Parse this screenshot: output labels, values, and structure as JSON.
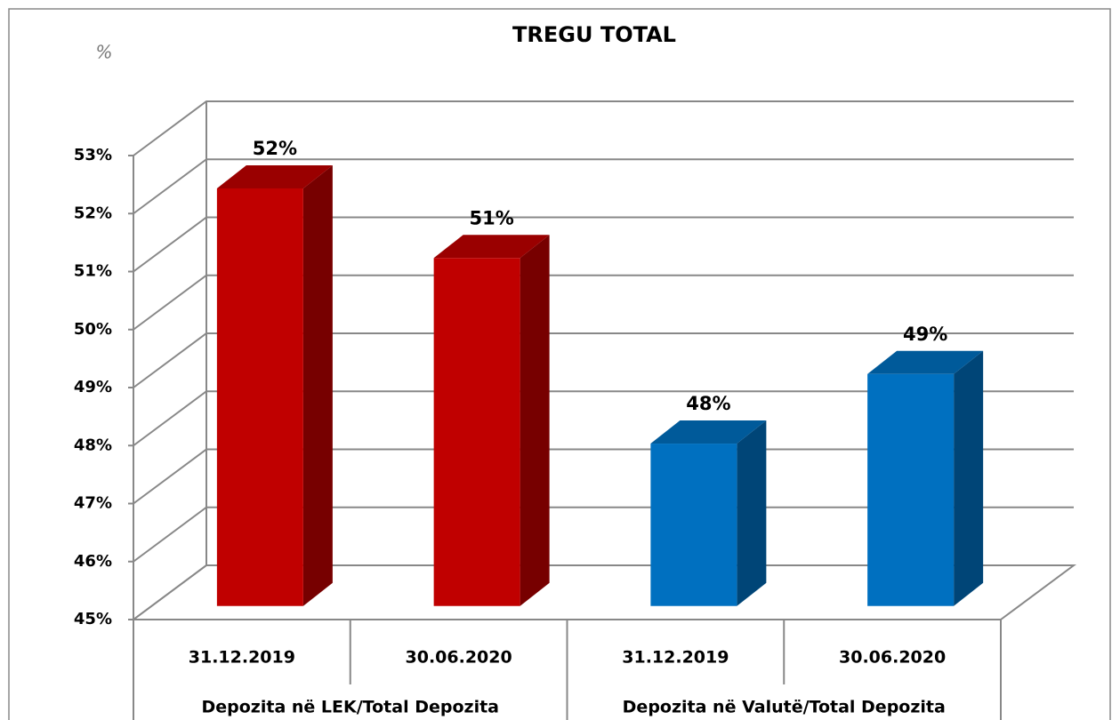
{
  "chart_data": {
    "type": "bar3d",
    "title": "TREGU TOTAL",
    "y_label": "%",
    "categories": [
      "31.12.2019",
      "30.06.2020",
      "31.12.2019",
      "30.06.2020"
    ],
    "groups": [
      "Depozita në LEK/Total Depozita",
      "Depozita në Valutë/Total Depozita"
    ],
    "values": [
      52.2,
      51.0,
      47.8,
      49.0
    ],
    "value_labels": [
      "52%",
      "51%",
      "48%",
      "49%"
    ],
    "colors": [
      "#c00000",
      "#c00000",
      "#0070c0",
      "#0070c0"
    ],
    "ylim": [
      45,
      53
    ],
    "yticks": [
      {
        "value": 45,
        "label": "45%"
      },
      {
        "value": 46,
        "label": "46%"
      },
      {
        "value": 47,
        "label": "47%"
      },
      {
        "value": 48,
        "label": "48%"
      },
      {
        "value": 49,
        "label": "49%"
      },
      {
        "value": 50,
        "label": "50%"
      },
      {
        "value": 51,
        "label": "51%"
      },
      {
        "value": 52,
        "label": "52%"
      },
      {
        "value": 53,
        "label": "53%"
      }
    ],
    "grid": true
  }
}
